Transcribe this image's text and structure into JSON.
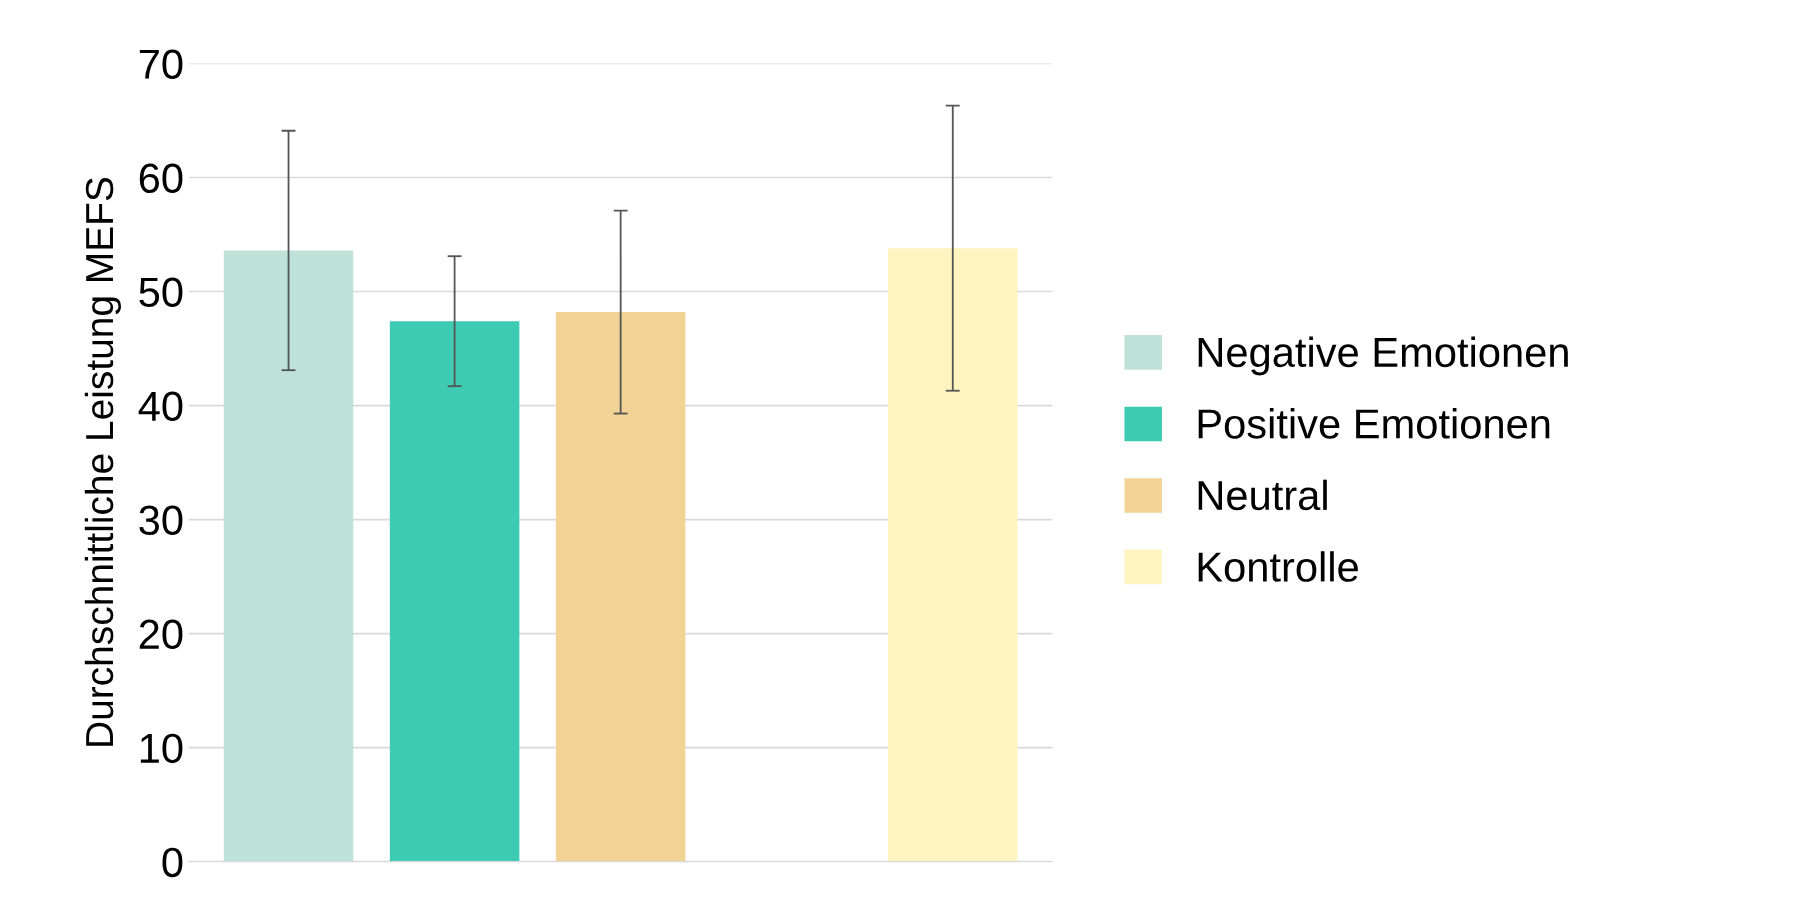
{
  "chart_data": {
    "type": "bar",
    "ylabel": "Durchschnittliche Leistung MEFS",
    "categories": [
      null,
      null,
      null,
      null,
      null
    ],
    "series": [
      {
        "name": "Negative Emotionen",
        "color": "#bfe2d8",
        "values": [
          53.6,
          null,
          null,
          null,
          null
        ],
        "errors": [
          [
            43.1,
            64.1
          ],
          null,
          null,
          null,
          null
        ]
      },
      {
        "name": "Positive Emotionen",
        "color": "#3dccb3",
        "values": [
          null,
          47.4,
          null,
          null,
          null
        ],
        "errors": [
          null,
          [
            41.7,
            53.1
          ],
          null,
          null,
          null
        ]
      },
      {
        "name": "Neutral",
        "color": "#f1d396",
        "values": [
          null,
          null,
          48.2,
          null,
          null
        ],
        "errors": [
          null,
          null,
          [
            39.3,
            57.1
          ],
          null,
          null
        ]
      },
      {
        "name": "Kontrolle",
        "color": "#fef4bf",
        "values": [
          null,
          null,
          null,
          null,
          53.8
        ],
        "errors": [
          null,
          null,
          null,
          null,
          [
            41.3,
            66.3
          ]
        ]
      }
    ],
    "ylim": [
      0,
      70
    ],
    "yticks": [
      0,
      10,
      20,
      30,
      40,
      50,
      60,
      70
    ],
    "grid": "y",
    "legend": "right"
  }
}
